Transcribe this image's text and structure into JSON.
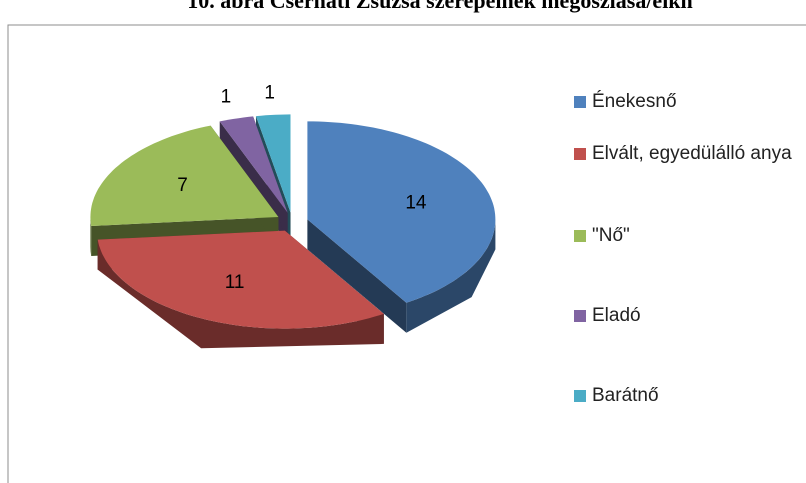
{
  "chart_data": {
    "type": "pie3d",
    "title": "10. ábra Csernáti Zsuzsa szerepeinek megoszlása/elkn",
    "categories": [
      "Énekesnő",
      "Elvált, egyedülálló anya",
      "\"Nő\"",
      "Eladó",
      "Barátnő"
    ],
    "values": [
      14,
      11,
      7,
      1,
      1
    ],
    "colors": [
      "#4f81bd",
      "#c0504d",
      "#9bbb59",
      "#8064a2",
      "#4bacc6"
    ],
    "legend": "right"
  }
}
